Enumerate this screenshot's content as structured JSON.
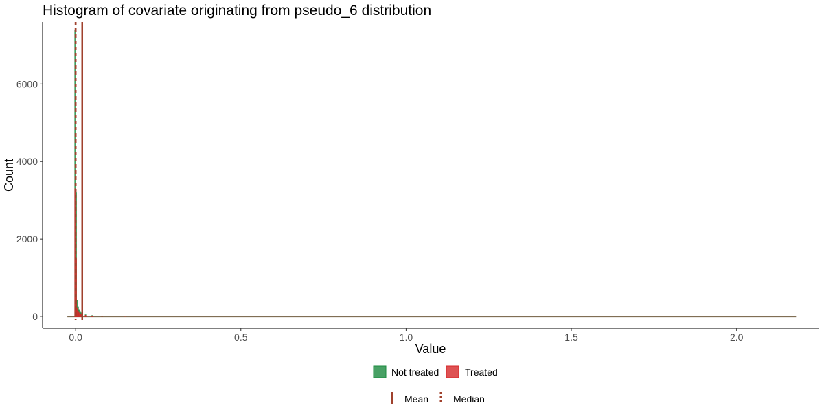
{
  "chart_data": {
    "type": "bar",
    "title": "Histogram of covariate originating from pseudo_6 distribution",
    "xlabel": "Value",
    "ylabel": "Count",
    "xlim": [
      -0.1,
      2.25
    ],
    "ylim": [
      -300,
      7600
    ],
    "x_ticks": [
      {
        "value": 0.0,
        "label": "0.0"
      },
      {
        "value": 0.5,
        "label": "0.5"
      },
      {
        "value": 1.0,
        "label": "1.0"
      },
      {
        "value": 1.5,
        "label": "1.5"
      },
      {
        "value": 2.0,
        "label": "2.0"
      }
    ],
    "y_ticks": [
      {
        "value": 0,
        "label": "0"
      },
      {
        "value": 2000,
        "label": "2000"
      },
      {
        "value": 4000,
        "label": "4000"
      },
      {
        "value": 6000,
        "label": "6000"
      }
    ],
    "x_range_of_data": [
      -0.025,
      2.18
    ],
    "series": [
      {
        "name": "Not treated",
        "color": "#1a8a3e",
        "bins": [
          {
            "x": -0.0015,
            "count": 7400
          },
          {
            "x": 0.0015,
            "count": 3200
          },
          {
            "x": 0.0045,
            "count": 420
          },
          {
            "x": 0.0075,
            "count": 250
          },
          {
            "x": 0.0105,
            "count": 180
          },
          {
            "x": 0.0135,
            "count": 130
          },
          {
            "x": 0.0165,
            "count": 95
          },
          {
            "x": 0.0195,
            "count": 70
          },
          {
            "x": 0.03,
            "count": 45
          },
          {
            "x": 0.05,
            "count": 25
          },
          {
            "x": 0.08,
            "count": 12
          },
          {
            "x": 0.15,
            "count": 5
          }
        ],
        "mean": 0.02,
        "median": 0.0
      },
      {
        "name": "Treated",
        "color": "#d62728",
        "bins": [
          {
            "x": -0.0015,
            "count": 3300
          },
          {
            "x": 0.0015,
            "count": 1500
          },
          {
            "x": 0.0045,
            "count": 230
          },
          {
            "x": 0.0075,
            "count": 140
          },
          {
            "x": 0.0105,
            "count": 95
          },
          {
            "x": 0.0135,
            "count": 70
          },
          {
            "x": 0.0165,
            "count": 55
          },
          {
            "x": 0.0195,
            "count": 45
          },
          {
            "x": 0.03,
            "count": 30
          },
          {
            "x": 0.05,
            "count": 15
          },
          {
            "x": 0.08,
            "count": 8
          },
          {
            "x": 0.15,
            "count": 3
          }
        ],
        "mean": 0.02,
        "median": 0.0
      }
    ],
    "reference_line_color": "#a0412d",
    "legend_position": "bottom",
    "legend_fill": [
      {
        "label": "Not treated",
        "color": "#1a8a3e"
      },
      {
        "label": "Treated",
        "color": "#d62728"
      }
    ],
    "legend_lines": [
      {
        "label": "Mean",
        "style": "solid"
      },
      {
        "label": "Median",
        "style": "dashed"
      }
    ],
    "grid": false
  }
}
